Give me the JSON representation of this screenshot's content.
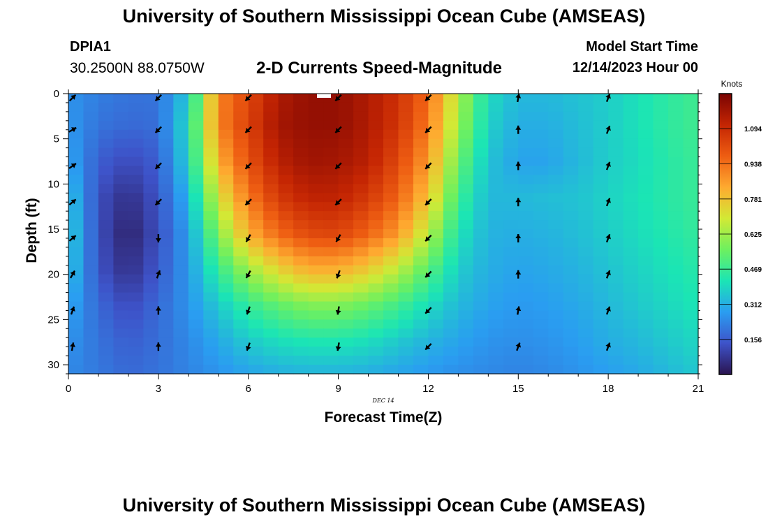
{
  "header": {
    "title": "University of Southern Mississippi Ocean Cube (AMSEAS)",
    "station": "DPIA1",
    "coords": "30.2500N  88.0750W",
    "subtitle": "2-D Currents Speed-Magnitude",
    "start_label": "Model Start Time",
    "start_value": "12/14/2023 Hour 00"
  },
  "footer": {
    "title": "University of Southern Mississippi Ocean Cube (AMSEAS)"
  },
  "chart_data": {
    "type": "heatmap",
    "title": "2-D Currents Speed-Magnitude",
    "xlabel": "Forecast Time(Z)",
    "ylabel": "Depth (ft)",
    "date_label": "DEC 14",
    "xlim": [
      0,
      21
    ],
    "ylim": [
      31,
      0
    ],
    "x_ticks": [
      0,
      3,
      6,
      9,
      12,
      15,
      18,
      21
    ],
    "y_ticks": [
      0,
      5,
      10,
      15,
      20,
      25,
      30
    ],
    "units": "Knots",
    "colorbar_ticks": [
      "1.094",
      "0.938",
      "0.781",
      "0.625",
      "0.469",
      "0.312",
      "0.156"
    ],
    "colorbar_range": [
      0,
      1.25
    ],
    "colors": [
      "#2a1450",
      "#3e53c9",
      "#2a9df1",
      "#1be5b5",
      "#6df05f",
      "#d2e935",
      "#feaa30",
      "#ee5d12",
      "#c42503",
      "#7a0403"
    ],
    "hours": [
      0,
      1,
      2,
      3,
      4,
      5,
      6,
      7,
      8,
      9,
      10,
      11,
      12,
      13,
      14,
      15,
      16,
      17,
      18,
      19,
      20,
      21
    ],
    "depths": [
      0,
      3.5,
      7.5,
      11.5,
      15.5,
      19.5,
      23.5,
      27.5,
      31
    ],
    "speed_grid": [
      [
        0.26,
        0.22,
        0.2,
        0.2,
        0.36,
        0.9,
        1.02,
        1.15,
        1.2,
        1.2,
        1.15,
        1.08,
        0.95,
        0.65,
        0.4,
        0.33,
        0.33,
        0.35,
        0.37,
        0.41,
        0.45,
        0.48
      ],
      [
        0.27,
        0.2,
        0.18,
        0.19,
        0.4,
        0.9,
        1.04,
        1.17,
        1.2,
        1.2,
        1.15,
        1.07,
        0.92,
        0.62,
        0.38,
        0.31,
        0.31,
        0.34,
        0.37,
        0.41,
        0.45,
        0.48
      ],
      [
        0.3,
        0.16,
        0.12,
        0.16,
        0.38,
        0.82,
        1.0,
        1.13,
        1.18,
        1.17,
        1.13,
        1.02,
        0.86,
        0.55,
        0.35,
        0.29,
        0.29,
        0.33,
        0.37,
        0.4,
        0.44,
        0.47
      ],
      [
        0.36,
        0.13,
        0.06,
        0.14,
        0.32,
        0.7,
        0.92,
        1.06,
        1.12,
        1.12,
        1.06,
        0.96,
        0.78,
        0.48,
        0.33,
        0.33,
        0.34,
        0.35,
        0.38,
        0.41,
        0.44,
        0.47
      ],
      [
        0.38,
        0.13,
        0.03,
        0.13,
        0.28,
        0.58,
        0.82,
        0.95,
        1.02,
        1.03,
        0.96,
        0.86,
        0.66,
        0.42,
        0.32,
        0.31,
        0.32,
        0.34,
        0.37,
        0.4,
        0.43,
        0.46
      ],
      [
        0.36,
        0.14,
        0.06,
        0.15,
        0.27,
        0.46,
        0.62,
        0.74,
        0.82,
        0.82,
        0.76,
        0.66,
        0.52,
        0.37,
        0.31,
        0.29,
        0.3,
        0.32,
        0.35,
        0.38,
        0.41,
        0.44
      ],
      [
        0.3,
        0.18,
        0.12,
        0.18,
        0.26,
        0.36,
        0.46,
        0.53,
        0.58,
        0.58,
        0.54,
        0.48,
        0.4,
        0.33,
        0.29,
        0.27,
        0.28,
        0.3,
        0.33,
        0.36,
        0.39,
        0.42
      ],
      [
        0.26,
        0.2,
        0.16,
        0.19,
        0.24,
        0.3,
        0.36,
        0.4,
        0.42,
        0.42,
        0.4,
        0.36,
        0.32,
        0.29,
        0.26,
        0.25,
        0.26,
        0.28,
        0.31,
        0.33,
        0.36,
        0.39
      ],
      [
        0.24,
        0.21,
        0.18,
        0.2,
        0.23,
        0.26,
        0.29,
        0.31,
        0.32,
        0.32,
        0.31,
        0.29,
        0.27,
        0.25,
        0.24,
        0.23,
        0.24,
        0.26,
        0.28,
        0.3,
        0.33,
        0.36
      ]
    ],
    "vector_hours": [
      0,
      3,
      6,
      9,
      12,
      15,
      18
    ],
    "vector_depths": [
      0.3,
      4,
      8,
      12,
      16,
      20,
      24,
      28
    ],
    "vector_directions_deg": [
      [
        45,
        225,
        225,
        225,
        225,
        10,
        20
      ],
      [
        60,
        225,
        225,
        225,
        225,
        0,
        20
      ],
      [
        55,
        225,
        225,
        225,
        225,
        0,
        20
      ],
      [
        50,
        225,
        225,
        225,
        225,
        0,
        20
      ],
      [
        50,
        180,
        210,
        210,
        225,
        0,
        20
      ],
      [
        30,
        20,
        210,
        200,
        225,
        0,
        20
      ],
      [
        20,
        0,
        200,
        190,
        225,
        10,
        20
      ],
      [
        10,
        0,
        200,
        190,
        225,
        20,
        20
      ]
    ]
  }
}
